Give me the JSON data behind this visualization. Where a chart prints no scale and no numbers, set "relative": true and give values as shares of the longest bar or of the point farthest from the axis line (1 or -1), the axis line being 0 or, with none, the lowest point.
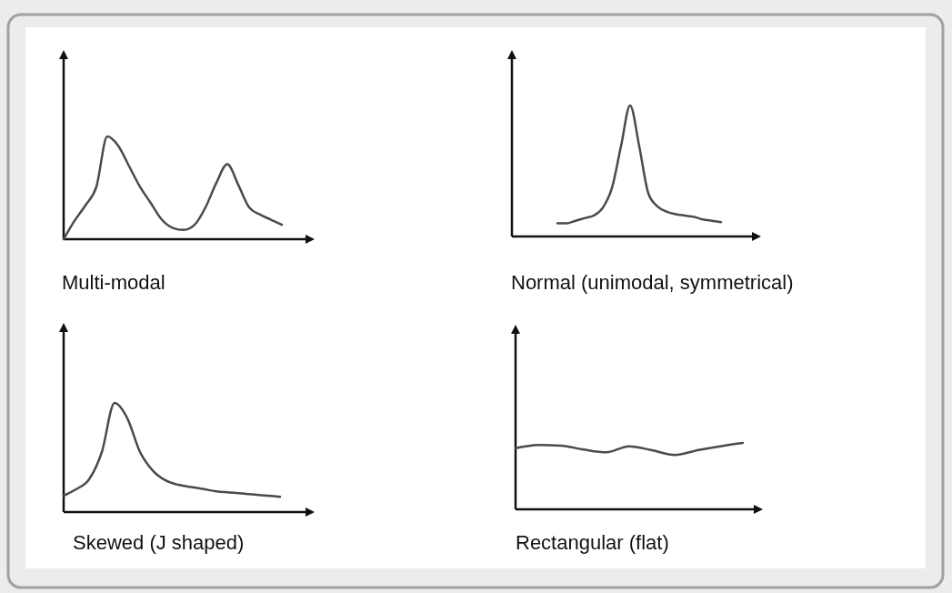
{
  "chart_data": [
    {
      "type": "line",
      "title": "Multi-modal",
      "relative": true,
      "color": "#4a4a4a",
      "categories": [
        null,
        null,
        null,
        null,
        null,
        null,
        null,
        null,
        null,
        null,
        null,
        null,
        null,
        null,
        null,
        null,
        null,
        null,
        null,
        null,
        null,
        null,
        null,
        null
      ],
      "values": [
        0,
        0.18,
        0.33,
        0.51,
        1,
        0.91,
        0.71,
        0.51,
        0.35,
        0.19,
        0.11,
        0.09,
        0.14,
        0.31,
        0.55,
        0.73,
        0.53,
        0.31,
        0.24,
        0.19,
        0.14,
        null,
        null,
        null
      ]
    },
    {
      "type": "line",
      "title": "Normal (unimodal, symmetrical)",
      "relative": true,
      "color": "#4a4a4a",
      "categories": [
        null,
        null,
        null,
        null,
        null,
        null,
        null,
        null,
        null,
        null,
        null,
        null,
        null,
        null,
        null,
        null,
        null,
        null,
        null,
        null,
        null,
        null,
        null,
        null,
        null,
        null,
        null,
        null
      ],
      "values": [
        null,
        null,
        null,
        null,
        null,
        0.1,
        0.1,
        0.12,
        0.14,
        0.16,
        0.22,
        0.37,
        0.69,
        1,
        0.69,
        0.33,
        0.23,
        0.19,
        0.17,
        0.16,
        0.15,
        0.13,
        0.12,
        0.11,
        null,
        null,
        null,
        null
      ]
    },
    {
      "type": "line",
      "title": "Skewed (J shaped)",
      "relative": true,
      "color": "#4a4a4a",
      "categories": [
        null,
        null,
        null,
        null,
        null,
        null,
        null,
        null,
        null,
        null,
        null,
        null,
        null,
        null,
        null,
        null,
        null,
        null,
        null,
        null
      ],
      "values": [
        0.15,
        0.21,
        0.3,
        0.55,
        1,
        0.86,
        0.55,
        0.38,
        0.29,
        0.25,
        0.23,
        0.21,
        0.19,
        0.18,
        0.17,
        0.16,
        0.15,
        0.14,
        null,
        null
      ]
    },
    {
      "type": "line",
      "title": "Rectangular (flat)",
      "relative": true,
      "color": "#4a4a4a",
      "categories": [
        null,
        null,
        null,
        null,
        null,
        null,
        null,
        null,
        null,
        null,
        null
      ],
      "values": [
        0.92,
        0.97,
        0.96,
        0.9,
        0.86,
        0.95,
        0.89,
        0.82,
        0.89,
        0.95,
        1
      ]
    }
  ]
}
